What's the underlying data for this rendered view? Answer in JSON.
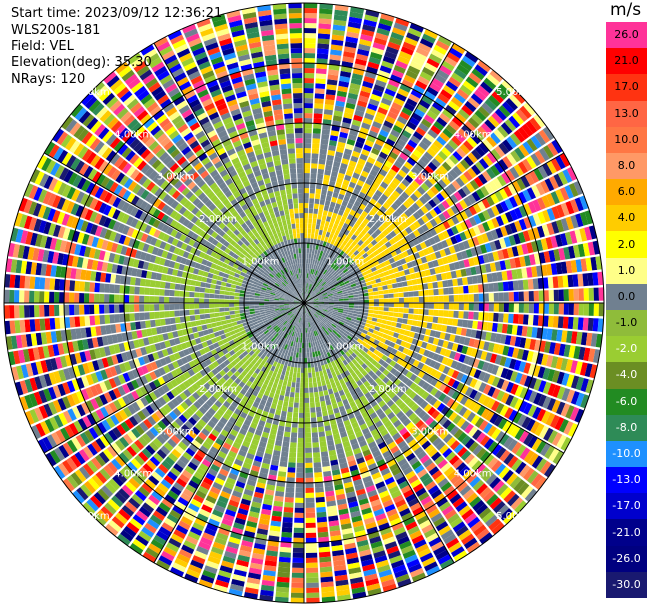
{
  "header": {
    "start_time": "Start time: 2023/09/12 12:36:21",
    "instrument": "WLS200s-181",
    "field": "Field: VEL",
    "elevation": "Elevation(deg): 35.30",
    "nrays": "NRays: 120"
  },
  "colorbar": {
    "unit": "m/s",
    "levels": [
      {
        "label": "26.0",
        "color": "#ff3399"
      },
      {
        "label": "21.0",
        "color": "#ff0000"
      },
      {
        "label": "17.0",
        "color": "#ff3311"
      },
      {
        "label": "13.0",
        "color": "#ff6644"
      },
      {
        "label": "10.0",
        "color": "#ff7744"
      },
      {
        "label": "8.0",
        "color": "#ff9966"
      },
      {
        "label": "6.0",
        "color": "#ffaa00"
      },
      {
        "label": "4.0",
        "color": "#ffcc00"
      },
      {
        "label": "2.0",
        "color": "#ffff00"
      },
      {
        "label": "1.0",
        "color": "#ffff88"
      },
      {
        "label": "0.0",
        "color": "#708090"
      },
      {
        "label": "-1.0",
        "color": "#8fbc3a"
      },
      {
        "label": "-2.0",
        "color": "#9acd32"
      },
      {
        "label": "-4.0",
        "color": "#6b8e23"
      },
      {
        "label": "-6.0",
        "color": "#228b22"
      },
      {
        "label": "-8.0",
        "color": "#2e8b57"
      },
      {
        "label": "-10.0",
        "color": "#1e90ff"
      },
      {
        "label": "-13.0",
        "color": "#0000ff"
      },
      {
        "label": "-17.0",
        "color": "#0000cd"
      },
      {
        "label": "-21.0",
        "color": "#00008b"
      },
      {
        "label": "-26.0",
        "color": "#000080"
      },
      {
        "label": "-30.0",
        "color": "#191970"
      }
    ]
  },
  "chart_data": {
    "type": "heatmap",
    "projection": "polar PPI",
    "field": "VEL",
    "unit": "m/s",
    "nrays": 120,
    "elevation_deg": 35.3,
    "range_ring_labels": [
      "1.00km",
      "2.00km",
      "3.00km",
      "4.00km",
      "5.00km"
    ],
    "value_range": [
      -30.0,
      26.0
    ],
    "pattern": "near-zero velocities (grey) within ~2 km with yellow (+2 m/s) band on the east/north and green (-2 m/s) band on the south/west; beyond ~3.5 km mostly noisy multicolored values"
  }
}
